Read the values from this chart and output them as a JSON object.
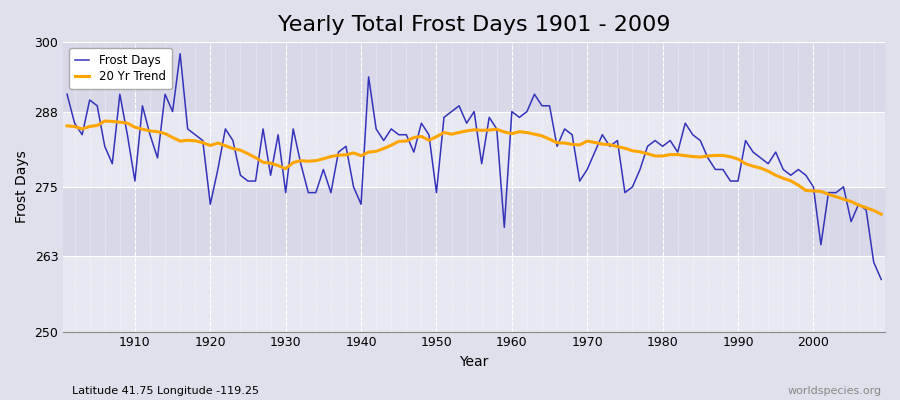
{
  "title": "Yearly Total Frost Days 1901 - 2009",
  "xlabel": "Year",
  "ylabel": "Frost Days",
  "subtitle": "Latitude 41.75 Longitude -119.25",
  "watermark": "worldspecies.org",
  "years": [
    1901,
    1902,
    1903,
    1904,
    1905,
    1906,
    1907,
    1908,
    1909,
    1910,
    1911,
    1912,
    1913,
    1914,
    1915,
    1916,
    1917,
    1918,
    1919,
    1920,
    1921,
    1922,
    1923,
    1924,
    1925,
    1926,
    1927,
    1928,
    1929,
    1930,
    1931,
    1932,
    1933,
    1934,
    1935,
    1936,
    1937,
    1938,
    1939,
    1940,
    1941,
    1942,
    1943,
    1944,
    1945,
    1946,
    1947,
    1948,
    1949,
    1950,
    1951,
    1952,
    1953,
    1954,
    1955,
    1956,
    1957,
    1958,
    1959,
    1960,
    1961,
    1962,
    1963,
    1964,
    1965,
    1966,
    1967,
    1968,
    1969,
    1970,
    1971,
    1972,
    1973,
    1974,
    1975,
    1976,
    1977,
    1978,
    1979,
    1980,
    1981,
    1982,
    1983,
    1984,
    1985,
    1986,
    1987,
    1988,
    1989,
    1990,
    1991,
    1992,
    1993,
    1994,
    1995,
    1996,
    1997,
    1998,
    1999,
    2000,
    2001,
    2002,
    2003,
    2004,
    2005,
    2006,
    2007,
    2008,
    2009
  ],
  "frost_days": [
    291,
    286,
    284,
    290,
    289,
    282,
    279,
    291,
    284,
    276,
    289,
    284,
    280,
    291,
    288,
    298,
    285,
    284,
    283,
    272,
    278,
    285,
    283,
    277,
    276,
    276,
    285,
    277,
    284,
    274,
    285,
    279,
    274,
    274,
    278,
    274,
    281,
    282,
    275,
    272,
    294,
    285,
    283,
    285,
    284,
    284,
    281,
    286,
    284,
    274,
    287,
    288,
    289,
    286,
    288,
    279,
    287,
    285,
    268,
    288,
    287,
    288,
    291,
    289,
    289,
    282,
    285,
    284,
    276,
    278,
    281,
    284,
    282,
    283,
    274,
    275,
    278,
    282,
    283,
    282,
    283,
    281,
    286,
    284,
    283,
    280,
    278,
    278,
    276,
    276,
    283,
    281,
    280,
    279,
    281,
    278,
    277,
    278,
    277,
    275,
    265,
    274,
    274,
    275,
    269,
    272,
    271,
    262,
    259
  ],
  "line_color": "#3333bb",
  "trend_color": "#FFA500",
  "bg_outer": "#e0e0ec",
  "bg_plot_light": "#e8e8f2",
  "bg_plot_dark": "#d8d8e8",
  "ylim": [
    250,
    300
  ],
  "yticks": [
    250,
    263,
    275,
    288,
    300
  ],
  "xticks": [
    1910,
    1920,
    1930,
    1940,
    1950,
    1960,
    1970,
    1980,
    1990,
    2000
  ],
  "title_fontsize": 16,
  "axis_fontsize": 10,
  "tick_fontsize": 9,
  "trend_window": 20
}
